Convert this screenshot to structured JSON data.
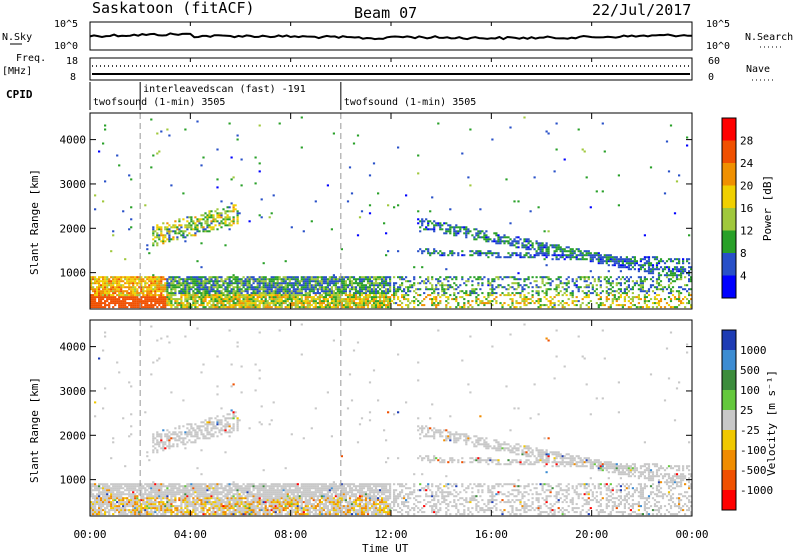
{
  "header": {
    "station": "Saskatoon (fitACF)",
    "beam": "Beam 07",
    "date": "22/Jul/2017"
  },
  "strip_nsky": {
    "left_label": "N.Sky",
    "right_label": "N.Search",
    "left_ticks": [
      "10^5",
      "10^0"
    ],
    "right_ticks": [
      "10^5",
      "10^0"
    ]
  },
  "strip_freq": {
    "left_label_1": "Freq.",
    "left_label_2": "[MHz]",
    "right_label": "Nave",
    "left_ticks": [
      "18",
      "8"
    ],
    "right_ticks": [
      "60",
      "0"
    ]
  },
  "cpid": {
    "label": "CPID",
    "modes": [
      {
        "text": "twofsound (1-min) 3505",
        "start_hour": 0,
        "row": 2
      },
      {
        "text": "interleavedscan (fast) -191",
        "start_hour": 2,
        "row": 1
      },
      {
        "text": "twofsound (1-min) 3505",
        "start_hour": 10,
        "row": 2
      }
    ]
  },
  "x_axis": {
    "label": "Time UT",
    "ticks": [
      "00:00",
      "04:00",
      "08:00",
      "12:00",
      "16:00",
      "20:00",
      "00:00"
    ]
  },
  "chart_data": [
    {
      "type": "heatmap",
      "panel": "power",
      "ylabel": "Slant Range [km]",
      "xlim_hours": [
        0,
        24
      ],
      "ylim": [
        180,
        4600
      ],
      "y_ticks": [
        "1000",
        "2000",
        "3000",
        "4000"
      ],
      "colorbar": {
        "label": "Power [dB]",
        "range": [
          0,
          30
        ],
        "ticks": [
          "4",
          "8",
          "12",
          "16",
          "20",
          "24",
          "28"
        ],
        "colors": [
          "#0000ff",
          "#2850c8",
          "#28a028",
          "#a0c83c",
          "#f0d000",
          "#f09000",
          "#f05000",
          "#ff0000"
        ]
      },
      "regions": [
        {
          "name": "near-range strong echoes",
          "t": [
            0,
            3
          ],
          "r": [
            200,
            900
          ],
          "level": 22
        },
        {
          "name": "near-range echoes",
          "t": [
            3,
            12
          ],
          "r": [
            200,
            800
          ],
          "level": 12
        },
        {
          "name": "far-range patch",
          "t": [
            2.3,
            6
          ],
          "r": [
            1600,
            2400
          ],
          "level": 10
        },
        {
          "name": "descending band",
          "t": [
            13,
            24
          ],
          "r": [
            800,
            2200
          ],
          "level": 6
        }
      ]
    },
    {
      "type": "heatmap",
      "panel": "velocity",
      "ylabel": "Slant Range [km]",
      "xlim_hours": [
        0,
        24
      ],
      "ylim": [
        180,
        4600
      ],
      "y_ticks": [
        "1000",
        "2000",
        "3000",
        "4000"
      ],
      "colorbar": {
        "label": "Velocity [m s⁻¹]",
        "ticks": [
          "1000",
          "500",
          "100",
          "25",
          "-25",
          "-100",
          "-500",
          "-1000"
        ],
        "colors": [
          "#1e3cb4",
          "#3c8cd2",
          "#3c8c3c",
          "#64c83c",
          "#c8c8c8",
          "#f0c800",
          "#f08c00",
          "#f05000",
          "#ff0000"
        ]
      },
      "regions": [
        {
          "name": "ground scatter near range",
          "t": [
            0,
            12
          ],
          "r": [
            200,
            900
          ],
          "v": 0
        },
        {
          "name": "ground scatter far patch",
          "t": [
            2.3,
            6
          ],
          "r": [
            1600,
            2400
          ],
          "v": 0
        },
        {
          "name": "descending ground scatter band",
          "t": [
            13,
            24
          ],
          "r": [
            800,
            2200
          ],
          "v": 0
        }
      ]
    }
  ]
}
